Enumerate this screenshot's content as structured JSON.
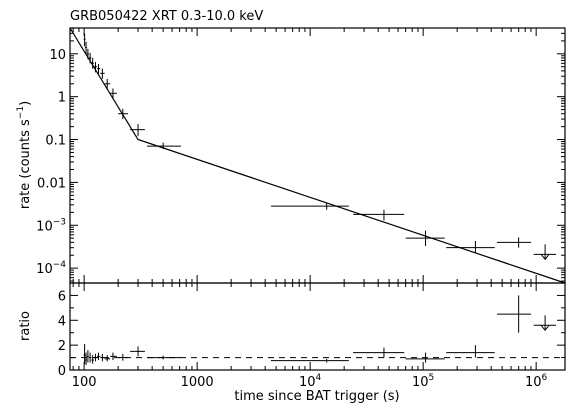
{
  "chart_data": {
    "type": "scatter",
    "title": "GRB050422 XRT 0.3-10.0 keV",
    "xlabel": "time since BAT trigger (s)",
    "x_scale": "log",
    "xlim": [
      75,
      1800000
    ],
    "x_ticks": [
      {
        "value": 100,
        "label": "100",
        "exp": ""
      },
      {
        "value": 1000,
        "label": "1000",
        "exp": ""
      },
      {
        "value": 10000,
        "label": "10",
        "exp": "4"
      },
      {
        "value": 100000,
        "label": "10",
        "exp": "5"
      },
      {
        "value": 1000000,
        "label": "10",
        "exp": "6"
      }
    ],
    "panels": [
      {
        "name": "rate",
        "ylabel": "rate (counts s",
        "ylabel_sup": "−1",
        "ylabel_close": ")",
        "y_scale": "log",
        "ylim": [
          4.5e-05,
          40
        ],
        "y_ticks": [
          {
            "value": 10,
            "label": "10",
            "exp": ""
          },
          {
            "value": 1,
            "label": "1",
            "exp": ""
          },
          {
            "value": 0.1,
            "label": "0.1",
            "exp": ""
          },
          {
            "value": 0.01,
            "label": "0.01",
            "exp": ""
          },
          {
            "value": 0.001,
            "label": "10",
            "exp": "−3"
          },
          {
            "value": 0.0001,
            "label": "10",
            "exp": "−4"
          }
        ],
        "points": [
          {
            "x": 101,
            "xlo": 99,
            "xhi": 103,
            "y": 22,
            "ylo": 15,
            "yhi": 30
          },
          {
            "x": 104,
            "xlo": 102,
            "xhi": 106,
            "y": 14,
            "ylo": 10,
            "yhi": 19
          },
          {
            "x": 108,
            "xlo": 106,
            "xhi": 110,
            "y": 10,
            "ylo": 7.5,
            "yhi": 13
          },
          {
            "x": 113,
            "xlo": 110,
            "xhi": 116,
            "y": 8,
            "ylo": 6,
            "yhi": 10.5
          },
          {
            "x": 119,
            "xlo": 116,
            "xhi": 122,
            "y": 6,
            "ylo": 4.5,
            "yhi": 8
          },
          {
            "x": 126,
            "xlo": 122,
            "xhi": 130,
            "y": 5,
            "ylo": 3.7,
            "yhi": 6.5
          },
          {
            "x": 134,
            "xlo": 130,
            "xhi": 139,
            "y": 4.5,
            "ylo": 3.4,
            "yhi": 5.8
          },
          {
            "x": 145,
            "xlo": 139,
            "xhi": 152,
            "y": 3.5,
            "ylo": 2.6,
            "yhi": 4.5
          },
          {
            "x": 160,
            "xlo": 152,
            "xhi": 170,
            "y": 2,
            "ylo": 1.5,
            "yhi": 2.6
          },
          {
            "x": 180,
            "xlo": 170,
            "xhi": 195,
            "y": 1.2,
            "ylo": 0.9,
            "yhi": 1.55
          },
          {
            "x": 220,
            "xlo": 200,
            "xhi": 245,
            "y": 0.4,
            "ylo": 0.3,
            "yhi": 0.52
          },
          {
            "x": 300,
            "xlo": 255,
            "xhi": 345,
            "y": 0.17,
            "ylo": 0.12,
            "yhi": 0.23
          },
          {
            "x": 500,
            "xlo": 360,
            "xhi": 720,
            "y": 0.07,
            "ylo": 0.06,
            "yhi": 0.085
          },
          {
            "x": 14000,
            "xlo": 4500,
            "xhi": 22000,
            "y": 0.0028,
            "ylo": 0.0023,
            "yhi": 0.0033
          },
          {
            "x": 45000,
            "xlo": 24000,
            "xhi": 68000,
            "y": 0.0018,
            "ylo": 0.0013,
            "yhi": 0.0023
          },
          {
            "x": 105000,
            "xlo": 70000,
            "xhi": 155000,
            "y": 0.0005,
            "ylo": 0.00033,
            "yhi": 0.00075
          },
          {
            "x": 290000,
            "xlo": 160000,
            "xhi": 430000,
            "y": 0.0003,
            "ylo": 0.00022,
            "yhi": 0.00043
          },
          {
            "x": 700000,
            "xlo": 450000,
            "xhi": 900000,
            "y": 0.0004,
            "ylo": 0.0003,
            "yhi": 0.00052
          },
          {
            "x": 1200000,
            "xlo": 950000,
            "xhi": 1500000,
            "y": 0.00021,
            "upper_limit": true
          }
        ],
        "model": [
          {
            "x": 75,
            "y": 40
          },
          {
            "x": 300,
            "y": 0.1
          },
          {
            "x": 1800000,
            "y": 4.5e-05
          }
        ]
      },
      {
        "name": "ratio",
        "ylabel": "ratio",
        "y_scale": "linear",
        "ylim": [
          0,
          7
        ],
        "y_ticks": [
          {
            "value": 0,
            "label": "0"
          },
          {
            "value": 2,
            "label": "2"
          },
          {
            "value": 4,
            "label": "4"
          },
          {
            "value": 6,
            "label": "6"
          }
        ],
        "reference_line": 1,
        "points": [
          {
            "x": 101,
            "xlo": 99,
            "xhi": 103,
            "y": 1.2,
            "ylo": 0.5,
            "yhi": 2.1
          },
          {
            "x": 104,
            "xlo": 102,
            "xhi": 106,
            "y": 0.8,
            "ylo": 0.4,
            "yhi": 1.4
          },
          {
            "x": 108,
            "xlo": 106,
            "xhi": 110,
            "y": 1.1,
            "ylo": 0.6,
            "yhi": 1.6
          },
          {
            "x": 113,
            "xlo": 110,
            "xhi": 116,
            "y": 1.0,
            "ylo": 0.6,
            "yhi": 1.4
          },
          {
            "x": 119,
            "xlo": 116,
            "xhi": 122,
            "y": 0.8,
            "ylo": 0.5,
            "yhi": 1.2
          },
          {
            "x": 126,
            "xlo": 122,
            "xhi": 130,
            "y": 1.0,
            "ylo": 0.7,
            "yhi": 1.3
          },
          {
            "x": 134,
            "xlo": 130,
            "xhi": 139,
            "y": 1.1,
            "ylo": 0.8,
            "yhi": 1.4
          },
          {
            "x": 145,
            "xlo": 139,
            "xhi": 152,
            "y": 1.0,
            "ylo": 0.7,
            "yhi": 1.3
          },
          {
            "x": 160,
            "xlo": 152,
            "xhi": 170,
            "y": 0.9,
            "ylo": 0.7,
            "yhi": 1.2
          },
          {
            "x": 180,
            "xlo": 170,
            "xhi": 195,
            "y": 1.1,
            "ylo": 0.8,
            "yhi": 1.4
          },
          {
            "x": 220,
            "xlo": 200,
            "xhi": 245,
            "y": 1.0,
            "ylo": 0.75,
            "yhi": 1.3
          },
          {
            "x": 300,
            "xlo": 255,
            "xhi": 345,
            "y": 1.5,
            "ylo": 1.1,
            "yhi": 1.9
          },
          {
            "x": 500,
            "xlo": 360,
            "xhi": 720,
            "y": 1.0,
            "ylo": 0.85,
            "yhi": 1.15
          },
          {
            "x": 14000,
            "xlo": 4500,
            "xhi": 22000,
            "y": 0.75,
            "ylo": 0.6,
            "yhi": 0.9
          },
          {
            "x": 45000,
            "xlo": 24000,
            "xhi": 68000,
            "y": 1.4,
            "ylo": 1.0,
            "yhi": 1.8
          },
          {
            "x": 105000,
            "xlo": 70000,
            "xhi": 155000,
            "y": 0.9,
            "ylo": 0.6,
            "yhi": 1.4
          },
          {
            "x": 290000,
            "xlo": 160000,
            "xhi": 430000,
            "y": 1.4,
            "ylo": 1.0,
            "yhi": 2.0
          },
          {
            "x": 700000,
            "xlo": 450000,
            "xhi": 900000,
            "y": 4.5,
            "ylo": 3.0,
            "yhi": 6.0
          },
          {
            "x": 1200000,
            "xlo": 950000,
            "xhi": 1500000,
            "y": 3.6,
            "upper_limit": true
          }
        ]
      }
    ]
  }
}
